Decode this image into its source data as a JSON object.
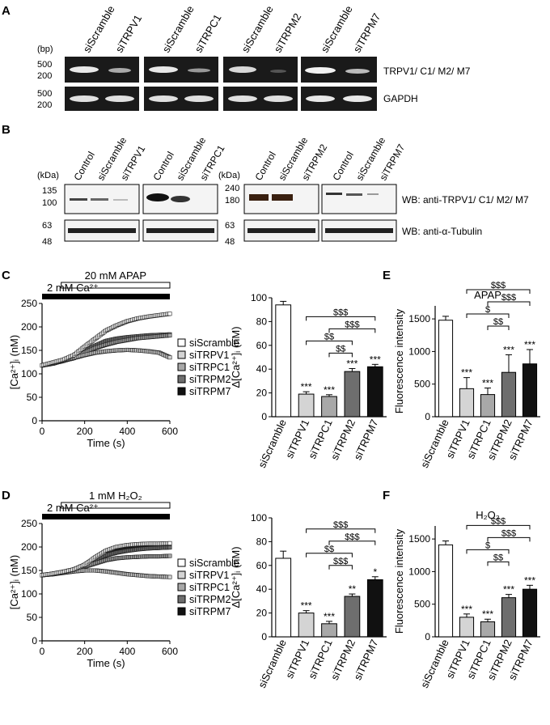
{
  "panels": {
    "A": "A",
    "B": "B",
    "C": "C",
    "D": "D",
    "E": "E",
    "F": "F"
  },
  "panelA": {
    "bp_label": "(bp)",
    "markers_top": [
      "500",
      "200"
    ],
    "markers_bottom": [
      "500",
      "200"
    ],
    "lanes": [
      "siScramble",
      "siTRPV1",
      "siScramble",
      "siTRPC1",
      "siScramble",
      "siTRPM2",
      "siScramble",
      "siTRPM7"
    ],
    "row_labels": [
      "TRPV1/ C1/ M2/ M7",
      "GAPDH"
    ]
  },
  "panelB": {
    "kda_left": "(kDa)",
    "kda_right": "(kDa)",
    "markers_left_top": [
      "135",
      "100"
    ],
    "markers_left_bottom": [
      "63",
      "48"
    ],
    "markers_right_top": [
      "240",
      "180"
    ],
    "markers_right_bottom": [
      "63",
      "48"
    ],
    "lanes": [
      "Control",
      "siScramble",
      "siTRPV1",
      "Control",
      "siScramble",
      "siTRPC1",
      "Control",
      "siScramble",
      "siTRPM2",
      "Control",
      "siScramble",
      "siTRPM7"
    ],
    "row_labels": [
      "WB: anti-TRPV1/ C1/ M2/ M7",
      "WB: anti-α-Tubulin"
    ]
  },
  "legend": [
    "siScramble",
    "siTRPV1",
    "siTRPC1",
    "siTRPM2",
    "siTRPM7"
  ],
  "colors": {
    "siScramble": "#ffffff",
    "siTRPV1": "#d4d4d4",
    "siTRPC1": "#a8a8a8",
    "siTRPM2": "#6e6e6e",
    "siTRPM7": "#111111"
  },
  "chart_data": [
    {
      "type": "line",
      "panel": "C",
      "treatment_label": "20 mM APAP",
      "calcium_label": "2 mM Ca²⁺",
      "xlabel": "Time (s)",
      "ylabel": "[Ca²⁺]ᵢ (nM)",
      "xlim": [
        0,
        600
      ],
      "ylim": [
        0,
        250
      ],
      "xticks": [
        "0",
        "200",
        "400",
        "600"
      ],
      "yticks": [
        "0",
        "50",
        "100",
        "150",
        "200",
        "250"
      ],
      "x": [
        0,
        50,
        100,
        150,
        200,
        250,
        300,
        350,
        400,
        450,
        500,
        550,
        600
      ],
      "series": [
        {
          "name": "siScramble",
          "values": [
            118,
            124,
            130,
            140,
            158,
            175,
            192,
            203,
            212,
            218,
            222,
            225,
            228
          ]
        },
        {
          "name": "siTRPV1",
          "values": [
            118,
            122,
            128,
            134,
            140,
            145,
            148,
            150,
            151,
            150,
            148,
            145,
            135
          ]
        },
        {
          "name": "siTRPC1",
          "values": [
            118,
            122,
            128,
            134,
            145,
            155,
            162,
            168,
            172,
            176,
            178,
            180,
            182
          ]
        },
        {
          "name": "siTRPM2",
          "values": [
            118,
            122,
            128,
            134,
            150,
            160,
            170,
            175,
            178,
            180,
            182,
            183,
            184
          ]
        },
        {
          "name": "siTRPM7",
          "values": [
            118,
            122,
            128,
            134,
            148,
            158,
            168,
            172,
            176,
            178,
            180,
            181,
            182
          ]
        }
      ]
    },
    {
      "type": "bar",
      "panel": "C-bar",
      "ylabel": "Δ[Ca²⁺]ᵢ (nM)",
      "ylim": [
        0,
        100
      ],
      "yticks": [
        "0",
        "20",
        "40",
        "60",
        "80",
        "100"
      ],
      "categories": [
        "siScramble",
        "siTRPV1",
        "siTRPC1",
        "siTRPM2",
        "siTRPM7"
      ],
      "values": [
        94,
        19,
        17,
        38,
        42
      ],
      "errors": [
        3,
        2,
        1.5,
        2.5,
        2
      ],
      "stars": [
        "",
        "***",
        "***",
        "***",
        "***"
      ],
      "brackets": [
        {
          "from": 1,
          "to": 4,
          "label": "$$$",
          "level": 3
        },
        {
          "from": 2,
          "to": 4,
          "label": "$$$",
          "level": 2
        },
        {
          "from": 1,
          "to": 3,
          "label": "$$",
          "level": 1
        },
        {
          "from": 2,
          "to": 3,
          "label": "$$",
          "level": 0
        }
      ]
    },
    {
      "type": "bar",
      "panel": "E",
      "title": "APAP",
      "ylabel": "Fluorescence intensity",
      "ylim": [
        0,
        1700
      ],
      "yticks": [
        "0",
        "500",
        "1000",
        "1500"
      ],
      "ytick_values": [
        0,
        500,
        1000,
        1500
      ],
      "categories": [
        "siScramble",
        "siTRPV1",
        "siTRPC1",
        "siTRPM2",
        "siTRPM7"
      ],
      "values": [
        1480,
        430,
        340,
        680,
        810
      ],
      "errors": [
        60,
        170,
        100,
        270,
        220
      ],
      "stars": [
        "",
        "***",
        "***",
        "***",
        "***"
      ],
      "brackets": [
        {
          "from": 1,
          "to": 4,
          "label": "$$$",
          "level": 4
        },
        {
          "from": 2,
          "to": 4,
          "label": "$$$",
          "level": 3
        },
        {
          "from": 1,
          "to": 3,
          "label": "$",
          "level": 2
        },
        {
          "from": 2,
          "to": 3,
          "label": "$$",
          "level": 1
        }
      ]
    },
    {
      "type": "line",
      "panel": "D",
      "treatment_label": "1 mM H₂O₂",
      "calcium_label": "2 mM Ca²⁺",
      "xlabel": "Time (s)",
      "ylabel": "[Ca²⁺]ᵢ (nM)",
      "xlim": [
        0,
        600
      ],
      "ylim": [
        0,
        250
      ],
      "xticks": [
        "0",
        "200",
        "400",
        "600"
      ],
      "yticks": [
        "0",
        "50",
        "100",
        "150",
        "200",
        "250"
      ],
      "x": [
        0,
        50,
        100,
        150,
        200,
        250,
        300,
        350,
        400,
        450,
        500,
        550,
        600
      ],
      "series": [
        {
          "name": "siScramble",
          "values": [
            140,
            143,
            147,
            152,
            162,
            178,
            192,
            200,
            204,
            206,
            207,
            207,
            208
          ]
        },
        {
          "name": "siTRPV1",
          "values": [
            140,
            142,
            145,
            148,
            150,
            150,
            148,
            145,
            142,
            140,
            138,
            137,
            136
          ]
        },
        {
          "name": "siTRPC1",
          "values": [
            140,
            142,
            146,
            150,
            158,
            165,
            172,
            176,
            178,
            179,
            180,
            180,
            181
          ]
        },
        {
          "name": "siTRPM2",
          "values": [
            140,
            143,
            147,
            152,
            160,
            172,
            182,
            188,
            192,
            195,
            197,
            198,
            199
          ]
        },
        {
          "name": "siTRPM7",
          "values": [
            140,
            143,
            147,
            152,
            162,
            176,
            188,
            196,
            200,
            202,
            204,
            205,
            205
          ]
        }
      ]
    },
    {
      "type": "bar",
      "panel": "D-bar",
      "ylabel": "Δ[Ca²⁺]ᵢ (nM)",
      "ylim": [
        0,
        100
      ],
      "yticks": [
        "0",
        "20",
        "40",
        "60",
        "80",
        "100"
      ],
      "categories": [
        "siScramble",
        "siTRPV1",
        "siTRPC1",
        "siTRPM2",
        "siTRPM7"
      ],
      "values": [
        66,
        20,
        11,
        34,
        48
      ],
      "errors": [
        6,
        2,
        2,
        2,
        2.5
      ],
      "stars": [
        "",
        "***",
        "***",
        "**",
        "*"
      ],
      "brackets": [
        {
          "from": 1,
          "to": 4,
          "label": "$$$",
          "level": 3
        },
        {
          "from": 2,
          "to": 4,
          "label": "$$$",
          "level": 2
        },
        {
          "from": 1,
          "to": 3,
          "label": "$$",
          "level": 1
        },
        {
          "from": 2,
          "to": 3,
          "label": "$$$",
          "level": 0
        }
      ]
    },
    {
      "type": "bar",
      "panel": "F",
      "title": "H₂O₂",
      "ylabel": "Fluorescence intensity",
      "ylim": [
        0,
        1700
      ],
      "yticks": [
        "0",
        "500",
        "1000",
        "1500"
      ],
      "ytick_values": [
        0,
        500,
        1000,
        1500
      ],
      "categories": [
        "siScramble",
        "siTRPV1",
        "siTRPC1",
        "siTRPM2",
        "siTRPM7"
      ],
      "values": [
        1410,
        300,
        230,
        600,
        730
      ],
      "errors": [
        60,
        50,
        40,
        50,
        60
      ],
      "stars": [
        "",
        "***",
        "***",
        "***",
        "***"
      ],
      "brackets": [
        {
          "from": 1,
          "to": 4,
          "label": "$$$",
          "level": 4
        },
        {
          "from": 2,
          "to": 4,
          "label": "$$$",
          "level": 3
        },
        {
          "from": 1,
          "to": 3,
          "label": "$",
          "level": 2
        },
        {
          "from": 2,
          "to": 3,
          "label": "$$",
          "level": 1
        }
      ]
    }
  ]
}
